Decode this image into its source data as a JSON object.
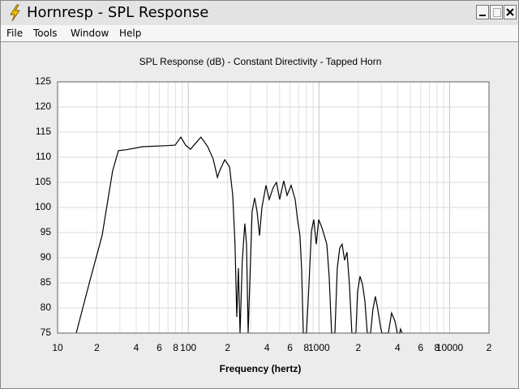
{
  "window": {
    "title": "Hornresp - SPL Response",
    "menu": [
      "File",
      "Tools",
      "Window",
      "Help"
    ]
  },
  "chart_data": {
    "type": "line",
    "title": "SPL Response (dB) - Constant Directivity - Tapped Horn",
    "x_label": "Frequency (hertz)",
    "xscale": "log",
    "grid": true,
    "xlim": [
      10,
      20000
    ],
    "ylim": [
      75,
      125
    ],
    "xticks": [
      10,
      {
        "value": 20,
        "label": "2"
      },
      {
        "value": 40,
        "label": "4"
      },
      {
        "value": 60,
        "label": "6"
      },
      {
        "value": 80,
        "label": "8"
      },
      100,
      {
        "value": 200,
        "label": "2"
      },
      {
        "value": 400,
        "label": "4"
      },
      {
        "value": 600,
        "label": "6"
      },
      {
        "value": 800,
        "label": "8"
      },
      1000,
      {
        "value": 2000,
        "label": "2"
      },
      {
        "value": 4000,
        "label": "4"
      },
      {
        "value": 6000,
        "label": "6"
      },
      {
        "value": 8000,
        "label": "8"
      },
      10000,
      {
        "value": 20000,
        "label": "2"
      }
    ],
    "x_minor_ticks": [
      30,
      50,
      70,
      90,
      300,
      500,
      700,
      900,
      3000,
      5000,
      7000,
      9000
    ],
    "yticks": [
      75,
      80,
      85,
      90,
      95,
      100,
      105,
      110,
      115,
      120,
      125
    ],
    "color": "#000000",
    "x": [
      13.9,
      17.7,
      21.9,
      26.4,
      29.2,
      33.7,
      44.8,
      68.8,
      79.4,
      87.7,
      95.5,
      104,
      113,
      125,
      141,
      155,
      167,
      174,
      190,
      207,
      219,
      228,
      235,
      242,
      249,
      259,
      271,
      279,
      287,
      308,
      322,
      336,
      351,
      366,
      393,
      416,
      447,
      473,
      501,
      538,
      570,
      612,
      658,
      686,
      716,
      736,
      759,
      802,
      838,
      875,
      912,
      953,
      995,
      1052,
      1099,
      1148,
      1197,
      1250,
      1324,
      1380,
      1442,
      1504,
      1570,
      1640,
      1710,
      1786,
      1919,
      1972,
      2061,
      2153,
      2244,
      2344,
      2483,
      2588,
      2704,
      2818,
      2944,
      3027,
      3396,
      3597,
      3811,
      3972,
      4150,
      4207,
      4325
    ],
    "values": [
      75,
      85.5,
      94.4,
      107.3,
      111.3,
      111.5,
      112.1,
      112.3,
      112.4,
      114,
      112.4,
      111.6,
      112.7,
      114,
      112.1,
      109.7,
      106,
      107.3,
      109.5,
      108.1,
      102.4,
      92.7,
      78.2,
      87.9,
      75,
      89.5,
      96.8,
      92.7,
      75,
      99.2,
      101.9,
      99.2,
      94.4,
      100,
      104.4,
      101.6,
      104,
      105,
      101.6,
      105.3,
      102.4,
      104.4,
      101.6,
      97.6,
      94.4,
      87.9,
      75,
      75,
      84.7,
      95.2,
      97.6,
      92.7,
      97.6,
      96,
      94.4,
      92.7,
      86.3,
      75,
      75,
      87.9,
      91.9,
      92.7,
      89.5,
      91.1,
      84.7,
      75,
      75,
      83.1,
      86.3,
      84.7,
      81.5,
      75,
      75,
      79.8,
      82.3,
      79.8,
      76.6,
      75,
      75,
      79,
      77.4,
      75,
      75,
      75.8,
      75
    ]
  }
}
